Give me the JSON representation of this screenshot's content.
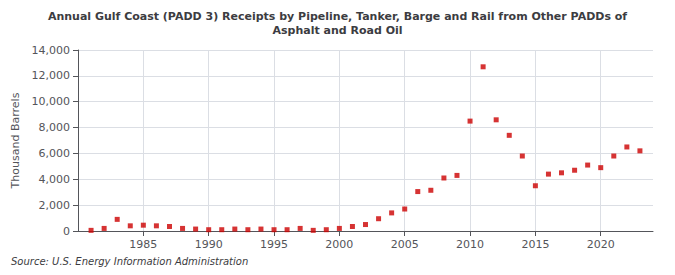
{
  "chart_data": {
    "type": "scatter",
    "title": "Annual Gulf Coast (PADD 3) Receipts by Pipeline, Tanker, Barge and Rail from Other PADDs of\nAsphalt and Road Oil",
    "ylabel": "Thousand Barrels",
    "annotations": [
      "Source: U.S. Energy Information Administration"
    ],
    "x": [
      1981,
      1982,
      1983,
      1984,
      1985,
      1986,
      1987,
      1988,
      1989,
      1990,
      1991,
      1992,
      1993,
      1994,
      1995,
      1996,
      1997,
      1998,
      1999,
      2000,
      2001,
      2002,
      2003,
      2004,
      2005,
      2006,
      2007,
      2008,
      2009,
      2010,
      2011,
      2012,
      2013,
      2014,
      2015,
      2016,
      2017,
      2018,
      2019,
      2020,
      2021,
      2022,
      2023
    ],
    "values": [
      50,
      200,
      900,
      400,
      450,
      400,
      350,
      200,
      150,
      100,
      100,
      150,
      100,
      150,
      100,
      100,
      200,
      50,
      100,
      200,
      350,
      500,
      950,
      1400,
      1700,
      3050,
      3150,
      4100,
      4300,
      8500,
      12700,
      8600,
      7400,
      5800,
      3500,
      4400,
      4500,
      4700,
      5100,
      4900,
      5800,
      6500,
      6200
    ],
    "color": "#cc0000",
    "marker": "square",
    "xlim": [
      1980,
      2024
    ],
    "xticks": [
      1985,
      1990,
      1995,
      2000,
      2005,
      2010,
      2015,
      2020
    ],
    "ylim": [
      0,
      14000
    ],
    "yticks": [
      0,
      {
        "value": 2000,
        "label": "2,000"
      },
      {
        "value": 4000,
        "label": "4,000"
      },
      {
        "value": 6000,
        "label": "6,000"
      },
      {
        "value": 8000,
        "label": "8,000"
      },
      {
        "value": 10000,
        "label": "10,000"
      },
      {
        "value": 12000,
        "label": "12,000"
      },
      {
        "value": 14000,
        "label": "14,000"
      }
    ],
    "grid": true
  }
}
